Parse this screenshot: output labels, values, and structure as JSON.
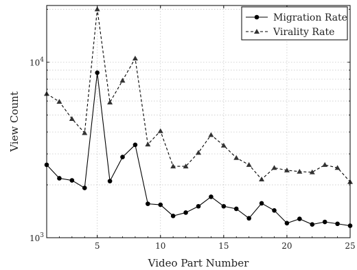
{
  "chart_data": {
    "type": "line",
    "title": "",
    "xlabel": "Video Part Number",
    "ylabel": "View Count",
    "xlim": [
      1,
      25
    ],
    "ylim": [
      1000,
      21000
    ],
    "yscale": "log",
    "grid": true,
    "legend": "top-right",
    "x_ticks": [
      5,
      10,
      15,
      20,
      25
    ],
    "y_ticks": [
      {
        "value": 1000,
        "base": "10",
        "exp": "3"
      },
      {
        "value": 10000,
        "base": "10",
        "exp": "4"
      }
    ],
    "x": [
      1,
      2,
      3,
      4,
      5,
      6,
      7,
      8,
      9,
      10,
      11,
      12,
      13,
      14,
      15,
      16,
      17,
      18,
      19,
      20,
      21,
      22,
      23,
      24,
      25
    ],
    "series": [
      {
        "name": "Migration Rate",
        "style": "solid",
        "marker": "circle",
        "values": [
          2600,
          2180,
          2120,
          1920,
          8700,
          2100,
          2880,
          3380,
          1560,
          1540,
          1330,
          1390,
          1510,
          1710,
          1510,
          1460,
          1290,
          1570,
          1430,
          1210,
          1280,
          1190,
          1230,
          1200,
          1170
        ]
      },
      {
        "name": "Virality Rate",
        "style": "dashed",
        "marker": "triangle",
        "values": [
          6600,
          5950,
          4750,
          3950,
          20000,
          5900,
          7850,
          10500,
          3400,
          4050,
          2550,
          2550,
          3050,
          3850,
          3350,
          2850,
          2600,
          2150,
          2500,
          2420,
          2380,
          2360,
          2600,
          2500,
          2080
        ]
      }
    ]
  }
}
